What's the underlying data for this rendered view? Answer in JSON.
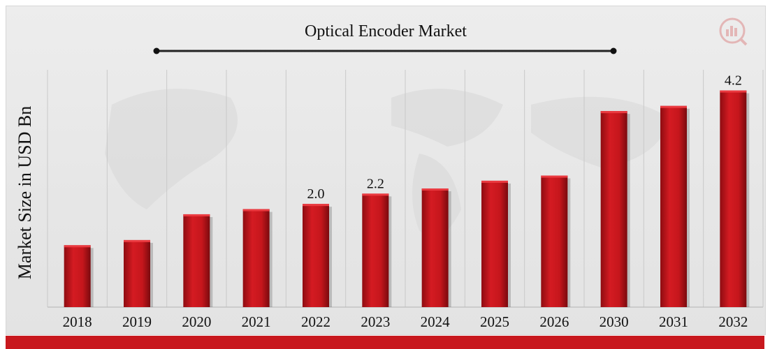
{
  "chart_data": {
    "type": "bar",
    "title": "Optical Encoder Market",
    "ylabel": "Market Size in USD Bn",
    "xlabel": "",
    "categories": [
      "2018",
      "2019",
      "2020",
      "2021",
      "2022",
      "2023",
      "2024",
      "2025",
      "2026",
      "2030",
      "2031",
      "2032"
    ],
    "values": [
      1.2,
      1.3,
      1.8,
      1.9,
      2.0,
      2.2,
      2.3,
      2.45,
      2.55,
      3.8,
      3.9,
      4.2
    ],
    "data_labels": {
      "2022": "2.0",
      "2023": "2.2",
      "2032": "4.2"
    },
    "ylim": [
      0,
      4.6
    ],
    "grid": "vertical",
    "bar_color": "#c8161d",
    "accent_color": "#c8181e"
  }
}
